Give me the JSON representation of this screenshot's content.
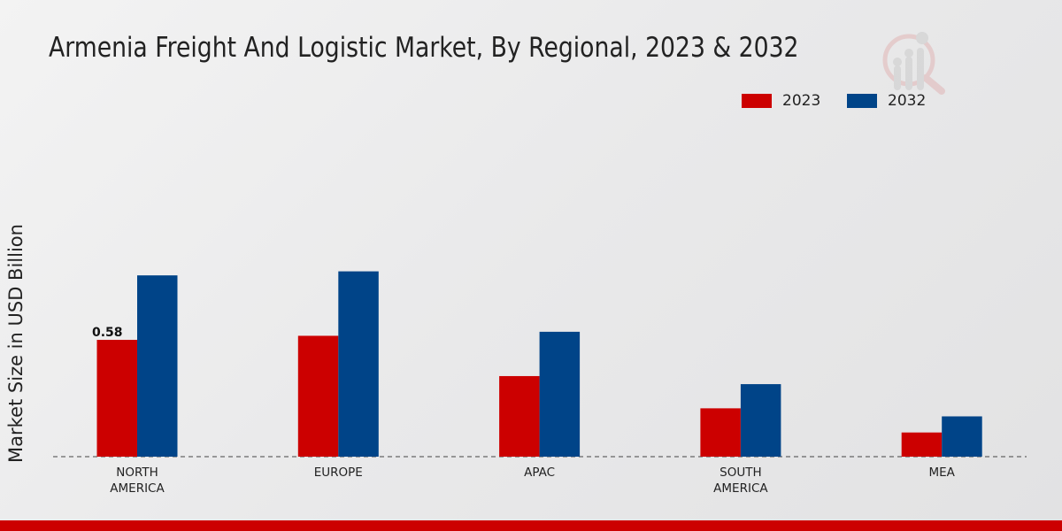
{
  "chart_data": {
    "type": "bar",
    "title": "Armenia Freight And Logistic Market, By Regional, 2023 & 2032",
    "xlabel": "",
    "ylabel": "Market Size in USD Billion",
    "categories": [
      "NORTH AMERICA",
      "EUROPE",
      "APAC",
      "SOUTH AMERICA",
      "MEA"
    ],
    "category_lines": [
      [
        "NORTH",
        "AMERICA"
      ],
      [
        "EUROPE"
      ],
      [
        "APAC"
      ],
      [
        "SOUTH",
        "AMERICA"
      ],
      [
        "MEA"
      ]
    ],
    "series": [
      {
        "name": "2023",
        "color": "#cc0000",
        "values": [
          0.58,
          0.6,
          0.4,
          0.24,
          0.12
        ]
      },
      {
        "name": "2032",
        "color": "#004488",
        "values": [
          0.9,
          0.92,
          0.62,
          0.36,
          0.2
        ]
      }
    ],
    "data_labels": [
      {
        "series": 0,
        "index": 0,
        "text": "0.58"
      }
    ],
    "ylim": [
      0,
      1.0
    ],
    "grid": false,
    "legend_position": "top-right"
  }
}
